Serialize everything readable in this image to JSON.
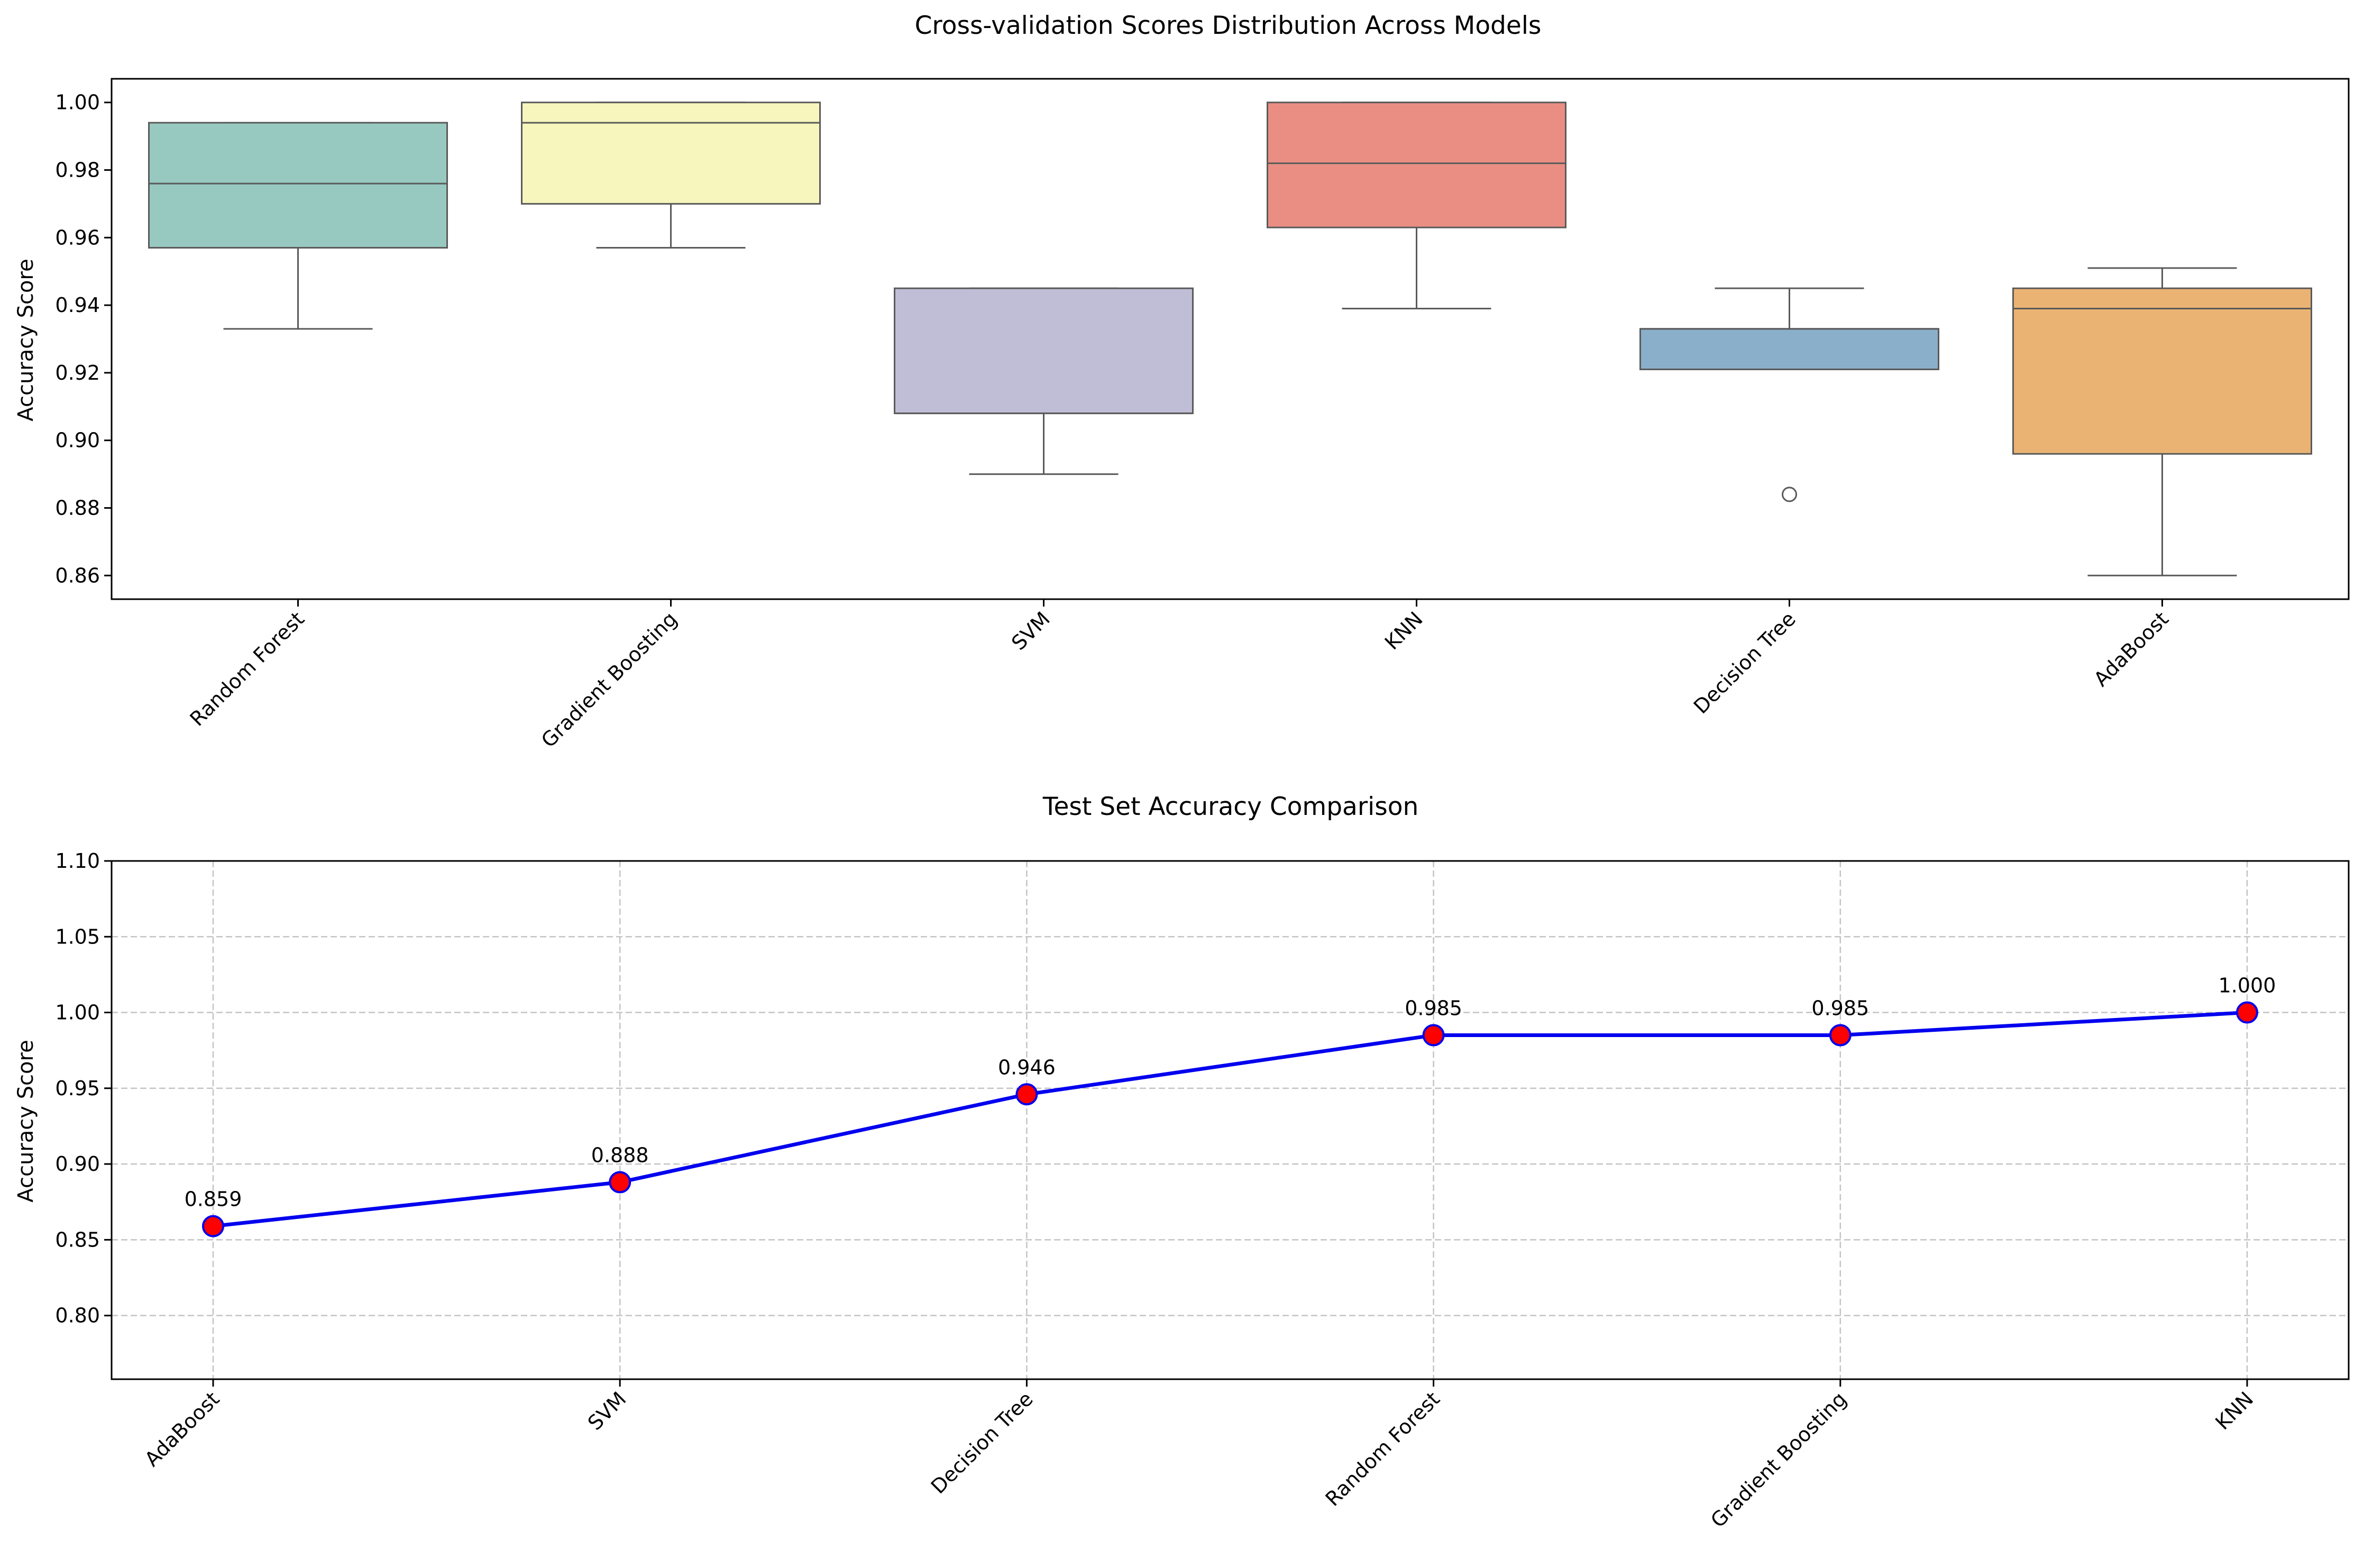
{
  "chart_data": [
    {
      "type": "box",
      "title": "Cross-validation Scores Distribution Across Models",
      "xlabel": "",
      "ylabel": "Accuracy Score",
      "ylim": [
        0.853,
        1.007
      ],
      "yticks": [
        "0.86",
        "0.88",
        "0.90",
        "0.92",
        "0.94",
        "0.96",
        "0.98",
        "1.00"
      ],
      "grid": false,
      "categories": [
        "Random Forest",
        "Gradient Boosting",
        "SVM",
        "KNN",
        "Decision Tree",
        "AdaBoost"
      ],
      "boxes": [
        {
          "category": "Random Forest",
          "whisker_low": 0.933,
          "q1": 0.957,
          "median": 0.976,
          "q3": 0.994,
          "whisker_high": 0.994,
          "outliers": [],
          "color": "#98c9c1"
        },
        {
          "category": "Gradient Boosting",
          "whisker_low": 0.957,
          "q1": 0.97,
          "median": 0.994,
          "q3": 1.0,
          "whisker_high": 1.0,
          "outliers": [],
          "color": "#f7f6bc"
        },
        {
          "category": "SVM",
          "whisker_low": 0.89,
          "q1": 0.908,
          "median": 0.908,
          "q3": 0.945,
          "whisker_high": 0.945,
          "outliers": [],
          "color": "#c0bdd6"
        },
        {
          "category": "KNN",
          "whisker_low": 0.939,
          "q1": 0.963,
          "median": 0.982,
          "q3": 1.0,
          "whisker_high": 1.0,
          "outliers": [],
          "color": "#ea8e84"
        },
        {
          "category": "Decision Tree",
          "whisker_low": 0.921,
          "q1": 0.921,
          "median": 0.933,
          "q3": 0.933,
          "whisker_high": 0.945,
          "outliers": [
            0.884
          ],
          "color": "#8aafca"
        },
        {
          "category": "AdaBoost",
          "whisker_low": 0.86,
          "q1": 0.896,
          "median": 0.939,
          "q3": 0.945,
          "whisker_high": 0.951,
          "outliers": [],
          "color": "#ebb373"
        }
      ]
    },
    {
      "type": "line",
      "title": "Test Set Accuracy Comparison",
      "xlabel": "",
      "ylabel": "Accuracy Score",
      "ylim": [
        0.758,
        1.1
      ],
      "yticks": [
        "0.80",
        "0.85",
        "0.90",
        "0.95",
        "1.00",
        "1.05",
        "1.10"
      ],
      "grid": true,
      "categories": [
        "AdaBoost",
        "SVM",
        "Decision Tree",
        "Random Forest",
        "Gradient Boosting",
        "KNN"
      ],
      "values": [
        0.859,
        0.888,
        0.946,
        0.985,
        0.985,
        1.0
      ],
      "data_labels": [
        "0.859",
        "0.888",
        "0.946",
        "0.985",
        "0.985",
        "1.000"
      ],
      "line_color": "#0000ee",
      "marker_fill": "#ff0000",
      "marker_edge": "#0000ee"
    }
  ]
}
